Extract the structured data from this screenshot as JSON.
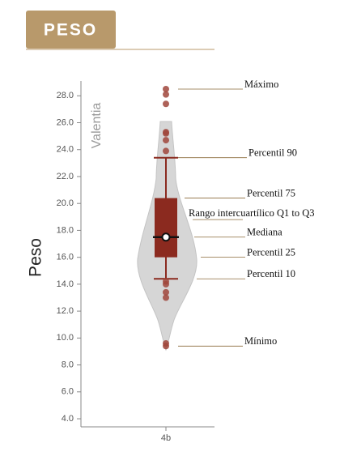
{
  "chart_data": {
    "type": "box",
    "title": "PESO",
    "subtitle": "Valentia",
    "y_label": "Peso",
    "categories": [
      "4b"
    ],
    "box": {
      "whisker_low": 14.4,
      "q1": 16.0,
      "median": 17.5,
      "q3": 20.4,
      "whisker_high": 23.4
    },
    "outliers": [
      28.5,
      28.1,
      27.4,
      25.3,
      25.2,
      24.7,
      23.9,
      14.2,
      14.0,
      13.4,
      13.0,
      9.6,
      9.4
    ],
    "color": "#8b2a1f",
    "outlier_color": "#a0463c",
    "violin_color": "#d6d6d6",
    "ylim": [
      3.4,
      29.1
    ],
    "yticks": [
      {
        "value": 4,
        "label": "4.0"
      },
      {
        "value": 6,
        "label": "6.0"
      },
      {
        "value": 8,
        "label": "8.0"
      },
      {
        "value": 10,
        "label": "10.0"
      },
      {
        "value": 12,
        "label": "12.0"
      },
      {
        "value": 14,
        "label": "14.0"
      },
      {
        "value": 16,
        "label": "16.0"
      },
      {
        "value": 18,
        "label": "18.0"
      },
      {
        "value": 20,
        "label": "20.0"
      },
      {
        "value": 22,
        "label": "22.0"
      },
      {
        "value": 24,
        "label": "24.0"
      },
      {
        "value": 26,
        "label": "26.0"
      },
      {
        "value": 28,
        "label": "28.0"
      }
    ],
    "annotations": [
      {
        "text": "Máximo",
        "value": 28.5
      },
      {
        "text": "Percentil  90",
        "value": 23.4
      },
      {
        "text": "Percentil  75",
        "value": 20.4
      },
      {
        "text": "Rango intercuartílico Q1 to Q3",
        "value": 18.8
      },
      {
        "text": "Mediana",
        "value": 17.5
      },
      {
        "text": "Percentil  25",
        "value": 16.0
      },
      {
        "text": "Percentil  10",
        "value": 14.4
      },
      {
        "text": "Mínimo",
        "value": 9.4
      }
    ]
  }
}
